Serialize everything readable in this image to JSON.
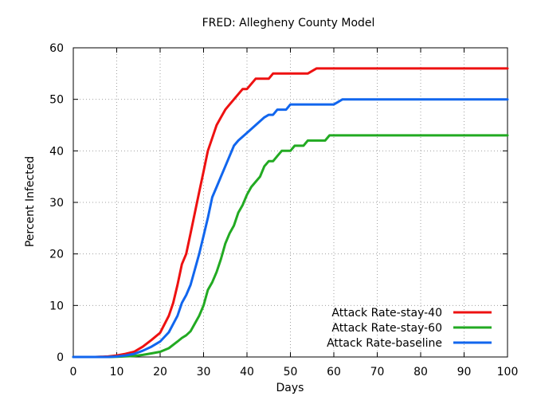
{
  "chart_data": {
    "type": "line",
    "title": "FRED: Allegheny County Model",
    "xlabel": "Days",
    "ylabel": "Percent Infected",
    "xlim": [
      0,
      100
    ],
    "ylim": [
      0,
      60
    ],
    "xticks": [
      "0",
      "10",
      "20",
      "30",
      "40",
      "50",
      "60",
      "70",
      "80",
      "90",
      "100"
    ],
    "yticks": [
      "0",
      "10",
      "20",
      "30",
      "40",
      "50",
      "60"
    ],
    "grid": true,
    "legend_position": "bottom-right",
    "series": [
      {
        "name": "Attack Rate-stay-40",
        "color": "#ee1111",
        "x": [
          0,
          5,
          8,
          10,
          12,
          14,
          16,
          18,
          20,
          22,
          23,
          24,
          25,
          26,
          27,
          28,
          29,
          30,
          31,
          32,
          33,
          34,
          35,
          36,
          37,
          38,
          39,
          40,
          41,
          42,
          43,
          44,
          45,
          46,
          47,
          48,
          50,
          52,
          54,
          55,
          56,
          58,
          60,
          70,
          80,
          90,
          100
        ],
        "y": [
          0,
          0,
          0.1,
          0.3,
          0.6,
          1.0,
          2.0,
          3.3,
          4.7,
          8.0,
          10.5,
          14,
          18,
          20,
          24,
          28,
          32,
          36,
          40,
          42.5,
          45,
          46.5,
          48,
          49,
          50,
          51,
          52,
          52,
          53,
          54,
          54,
          54,
          54,
          55,
          55,
          55,
          55,
          55,
          55,
          55.5,
          56,
          56,
          56,
          56,
          56,
          56,
          56
        ]
      },
      {
        "name": "Attack Rate-stay-60",
        "color": "#22aa22",
        "x": [
          0,
          8,
          10,
          14,
          16,
          18,
          20,
          22,
          24,
          25,
          26,
          27,
          28,
          29,
          30,
          31,
          32,
          33,
          34,
          35,
          36,
          37,
          38,
          39,
          40,
          41,
          42,
          43,
          44,
          45,
          46,
          47,
          48,
          49,
          50,
          51,
          52,
          53,
          54,
          55,
          56,
          57,
          58,
          59,
          60,
          70,
          80,
          90,
          100
        ],
        "y": [
          0,
          0,
          0.05,
          0.2,
          0.4,
          0.7,
          1.0,
          1.7,
          3.0,
          3.7,
          4.2,
          5.0,
          6.5,
          8.0,
          10.0,
          13.0,
          14.5,
          16.5,
          19,
          22,
          24,
          25.5,
          28,
          29.5,
          31.5,
          33,
          34,
          35,
          37,
          38,
          38,
          39,
          40,
          40,
          40,
          41,
          41,
          41,
          42,
          42,
          42,
          42,
          42,
          43,
          43,
          43,
          43,
          43,
          43
        ]
      },
      {
        "name": "Attack Rate-baseline",
        "color": "#1166ee",
        "x": [
          0,
          8,
          10,
          12,
          14,
          16,
          18,
          20,
          22,
          24,
          25,
          26,
          27,
          28,
          29,
          30,
          31,
          32,
          33,
          34,
          35,
          36,
          37,
          38,
          40,
          42,
          44,
          45,
          46,
          47,
          48,
          49,
          50,
          52,
          54,
          56,
          58,
          60,
          61,
          62,
          70,
          80,
          90,
          100
        ],
        "y": [
          0,
          0,
          0.1,
          0.3,
          0.6,
          1.2,
          2.0,
          3.0,
          4.8,
          8.0,
          10.5,
          12,
          14,
          17,
          20,
          23.5,
          27,
          31,
          33,
          35,
          37,
          39,
          41,
          42,
          43.5,
          45,
          46.5,
          47,
          47,
          48,
          48,
          48,
          49,
          49,
          49,
          49,
          49,
          49,
          49.5,
          50,
          50,
          50,
          50,
          50
        ]
      }
    ]
  }
}
